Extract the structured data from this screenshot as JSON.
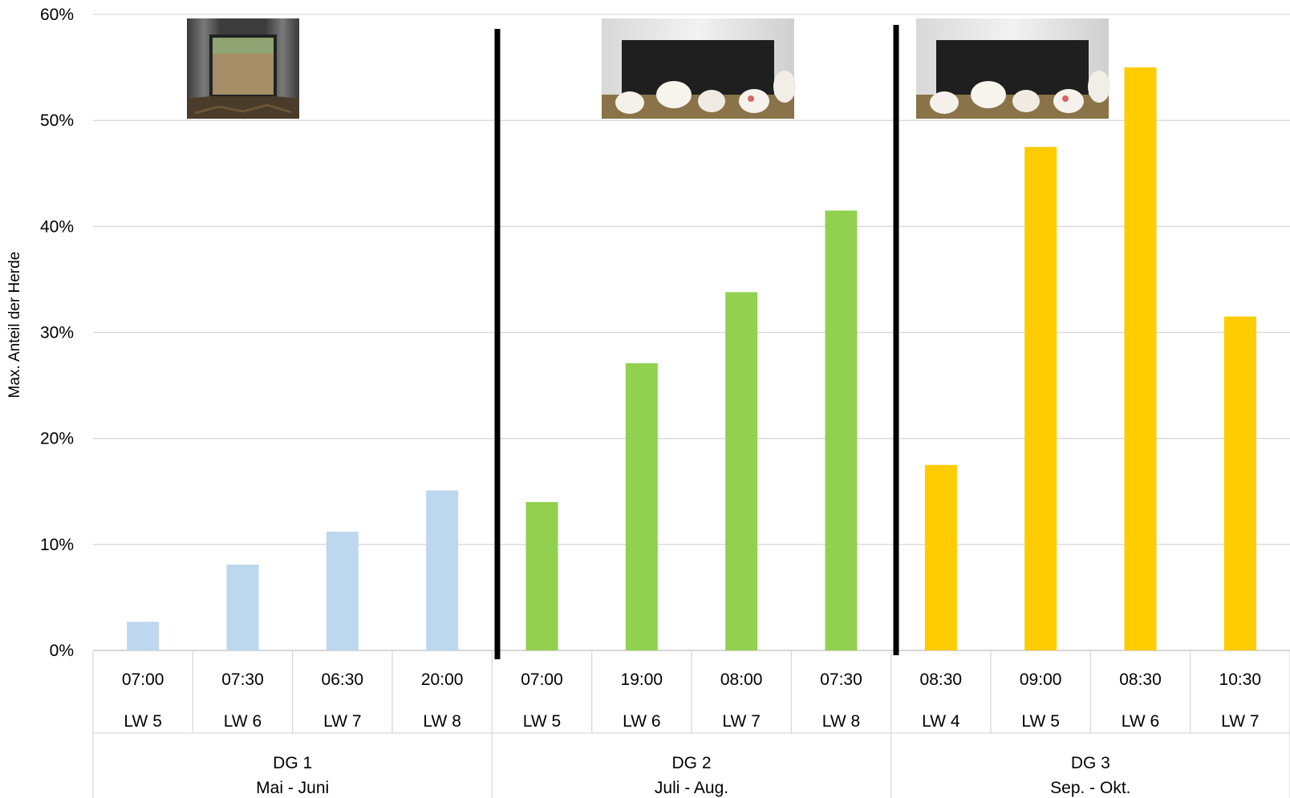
{
  "chart_data": {
    "type": "bar",
    "ylabel": "Max. Anteil der Herde",
    "ylim": [
      0,
      0.6
    ],
    "yticks": [
      "0%",
      "10%",
      "20%",
      "30%",
      "40%",
      "50%",
      "60%"
    ],
    "grid": true,
    "groups": [
      {
        "name": "DG 1",
        "period": "Mai - Juni",
        "color": "#BDD7EE",
        "bars": [
          {
            "time": "07:00",
            "week": "LW 5",
            "value": 0.027
          },
          {
            "time": "07:30",
            "week": "LW 6",
            "value": 0.081
          },
          {
            "time": "06:30",
            "week": "LW 7",
            "value": 0.112
          },
          {
            "time": "20:00",
            "week": "LW 8",
            "value": 0.151
          }
        ]
      },
      {
        "name": "DG 2",
        "period": "Juli - Aug.",
        "color": "#92D050",
        "bars": [
          {
            "time": "07:00",
            "week": "LW 5",
            "value": 0.14
          },
          {
            "time": "19:00",
            "week": "LW 6",
            "value": 0.271
          },
          {
            "time": "08:00",
            "week": "LW 7",
            "value": 0.338
          },
          {
            "time": "07:30",
            "week": "LW 8",
            "value": 0.415
          }
        ]
      },
      {
        "name": "DG 3",
        "period": "Sep. - Okt.",
        "color": "#FFCC00",
        "bars": [
          {
            "time": "08:30",
            "week": "LW 4",
            "value": 0.175
          },
          {
            "time": "09:00",
            "week": "LW 5",
            "value": 0.475
          },
          {
            "time": "08:30",
            "week": "LW 6",
            "value": 0.55
          },
          {
            "time": "10:30",
            "week": "LW 7",
            "value": 0.315
          }
        ]
      }
    ],
    "images": [
      "barn-opening-photo",
      "chickens-at-opening-photo",
      "chickens-at-opening-photo"
    ]
  }
}
